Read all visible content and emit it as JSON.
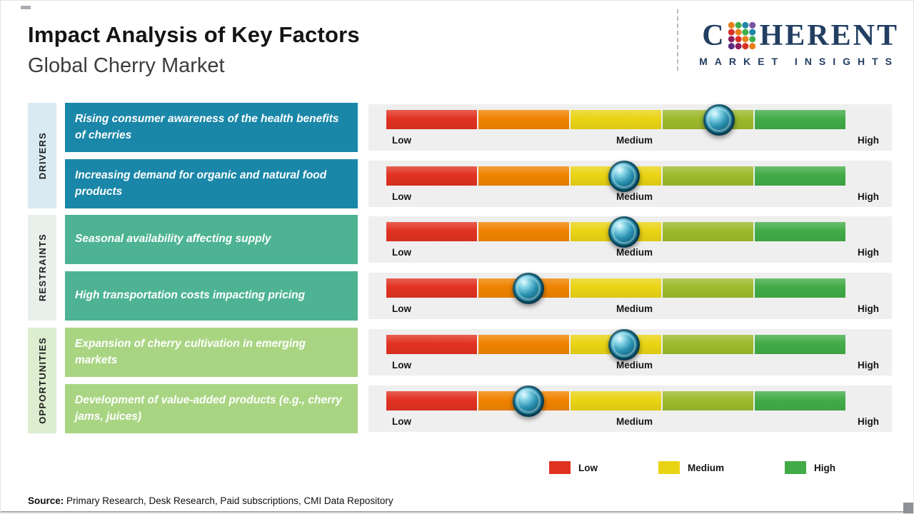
{
  "header": {
    "title": "Impact Analysis of Key Factors",
    "subtitle": "Global Cherry Market"
  },
  "logo": {
    "pre": "C",
    "post": "HERENT",
    "tagline": "MARKET INSIGHTS"
  },
  "scale": {
    "low": "Low",
    "medium": "Medium",
    "high": "High"
  },
  "categories": [
    {
      "label": "DRIVERS",
      "rows": [
        {
          "text": "Rising consumer awareness of the health benefits of cherries",
          "pos": "72.4%"
        },
        {
          "text": "Increasing demand for organic and natural food products",
          "pos": "51.8%"
        }
      ]
    },
    {
      "label": "RESTRAINTS",
      "rows": [
        {
          "text": "Seasonal availability affecting supply",
          "pos": "51.8%"
        },
        {
          "text": "High transportation costs impacting pricing",
          "pos": "31%"
        }
      ]
    },
    {
      "label": "OPPORTUNITIES",
      "rows": [
        {
          "text": "Expansion of cherry cultivation in emerging markets",
          "pos": "51.8%"
        },
        {
          "text": "Development of value-added products (e.g., cherry jams, juices)",
          "pos": "31%"
        }
      ]
    }
  ],
  "legend": {
    "items": [
      {
        "label": "Low",
        "color": "#e13222"
      },
      {
        "label": "Medium",
        "color": "#e9d414"
      },
      {
        "label": "High",
        "color": "#42ab47"
      }
    ]
  },
  "source": {
    "label": "Source:",
    "text": " Primary Research, Desk Research, Paid subscriptions, CMI Data Repository"
  },
  "colors": {
    "navy": "#223e62",
    "drivers_box": "#1a87a9",
    "drivers_strip": "#d9eaf3",
    "restraints_box": "#4db393",
    "restraints_strip": "#e9efeb",
    "opportunities_box": "#a9d583",
    "opportunities_strip": "#dcedd0",
    "row_bg": "#efefef",
    "segments": [
      "#e13222",
      "#f08300",
      "#e9d414",
      "#9cba2c",
      "#42ab47"
    ]
  },
  "chart_data": {
    "type": "bar",
    "title": "Impact Analysis of Key Factors",
    "subtitle": "Global Cherry Market",
    "scale_labels": [
      "Low",
      "Medium",
      "High"
    ],
    "scale_range_pct": [
      0,
      100
    ],
    "legend": [
      "Low",
      "Medium",
      "High"
    ],
    "legend_position": "bottom",
    "rows": [
      {
        "category": "Drivers",
        "factor": "Rising consumer awareness of the health benefits of cherries",
        "impact_pct": 72,
        "impact_level": "Medium-High"
      },
      {
        "category": "Drivers",
        "factor": "Increasing demand for organic and natural food products",
        "impact_pct": 52,
        "impact_level": "Medium"
      },
      {
        "category": "Restraints",
        "factor": "Seasonal availability affecting supply",
        "impact_pct": 52,
        "impact_level": "Medium"
      },
      {
        "category": "Restraints",
        "factor": "High transportation costs impacting pricing",
        "impact_pct": 31,
        "impact_level": "Low-Medium"
      },
      {
        "category": "Opportunities",
        "factor": "Expansion of cherry cultivation in emerging markets",
        "impact_pct": 52,
        "impact_level": "Medium"
      },
      {
        "category": "Opportunities",
        "factor": "Development of value-added products (e.g., cherry jams, juices)",
        "impact_pct": 31,
        "impact_level": "Low-Medium"
      }
    ]
  }
}
